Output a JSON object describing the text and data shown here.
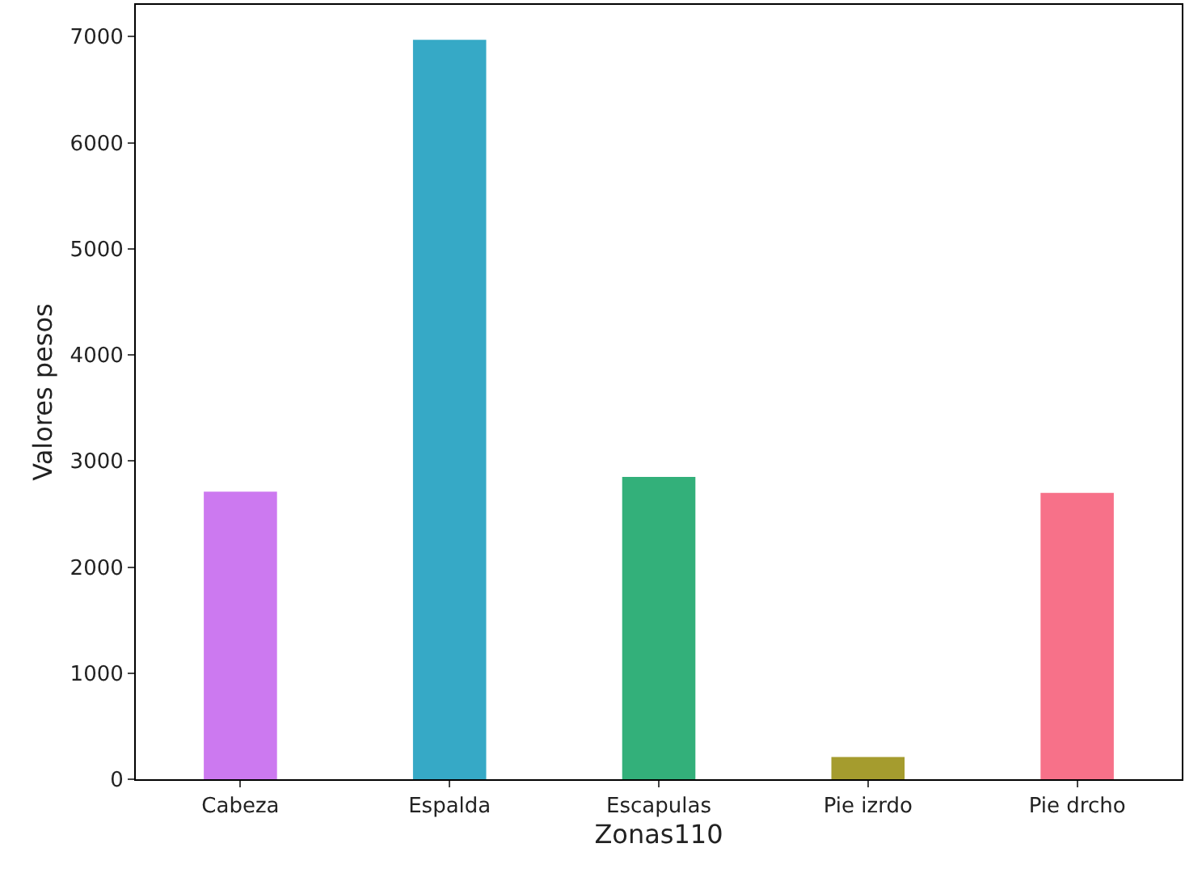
{
  "chart_data": {
    "type": "bar",
    "xlabel": "Zonas110",
    "ylabel": "Valores pesos",
    "categories": [
      "Cabeza",
      "Espalda",
      "Escapulas",
      "Pie izrdo",
      "Pie drcho"
    ],
    "values": [
      2710,
      6970,
      2850,
      210,
      2700
    ],
    "colors": [
      "#cc79f0",
      "#36a9c6",
      "#33b07a",
      "#a59c2e",
      "#f77189"
    ],
    "ylim": [
      0,
      7300
    ],
    "yticks": [
      0,
      1000,
      2000,
      3000,
      4000,
      5000,
      6000,
      7000
    ],
    "grid": false
  }
}
